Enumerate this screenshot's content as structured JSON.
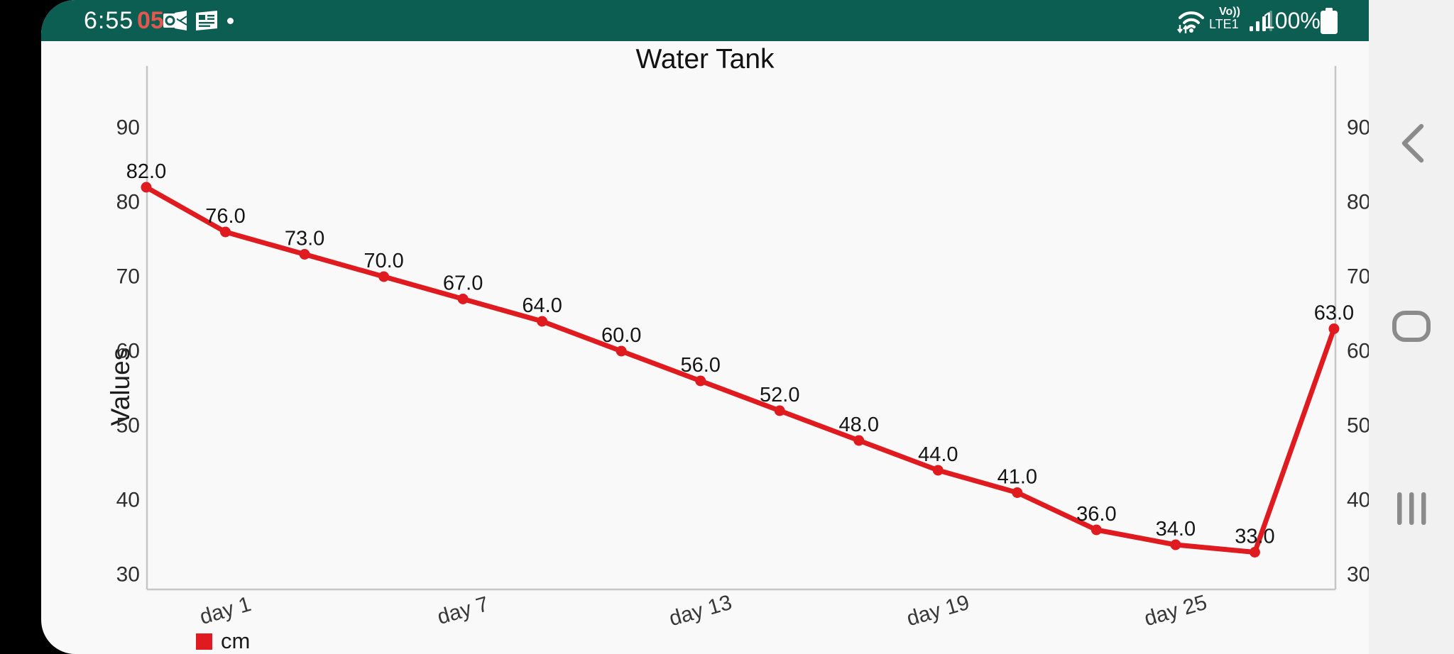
{
  "status_bar": {
    "time": "6:55",
    "notification_count": "05",
    "volte_line1": "Vo))",
    "volte_line2": "LTE1",
    "battery_percent": "100%",
    "bg_color": "#0c5e52"
  },
  "nav_bar": {
    "back_label": "back",
    "home_label": "home",
    "recents_label": "recents"
  },
  "chart_data": {
    "type": "line",
    "title": "Water Tank",
    "ylabel": "Values",
    "xlabel": "",
    "series": [
      {
        "name": "cm",
        "color": "#e01b1f",
        "values": [
          82.0,
          76.0,
          73.0,
          70.0,
          67.0,
          64.0,
          60.0,
          56.0,
          52.0,
          48.0,
          44.0,
          41.0,
          36.0,
          34.0,
          33.0,
          63.0
        ]
      }
    ],
    "point_label_decimals": 1,
    "x_tick_labels": [
      "day 1",
      "day 7",
      "day 13",
      "day 19",
      "day 25"
    ],
    "x_tick_point_indices": [
      1,
      4,
      7,
      10,
      13
    ],
    "y_ticks": [
      30,
      40,
      50,
      60,
      70,
      80,
      90
    ],
    "ylim": [
      28,
      98
    ],
    "y_axis_sides": "both",
    "grid": false,
    "legend_position": "bottom-left",
    "axis_color": "#c6c6c6",
    "tick_text_color": "#2f2f2f",
    "point_label_color": "#151515"
  }
}
